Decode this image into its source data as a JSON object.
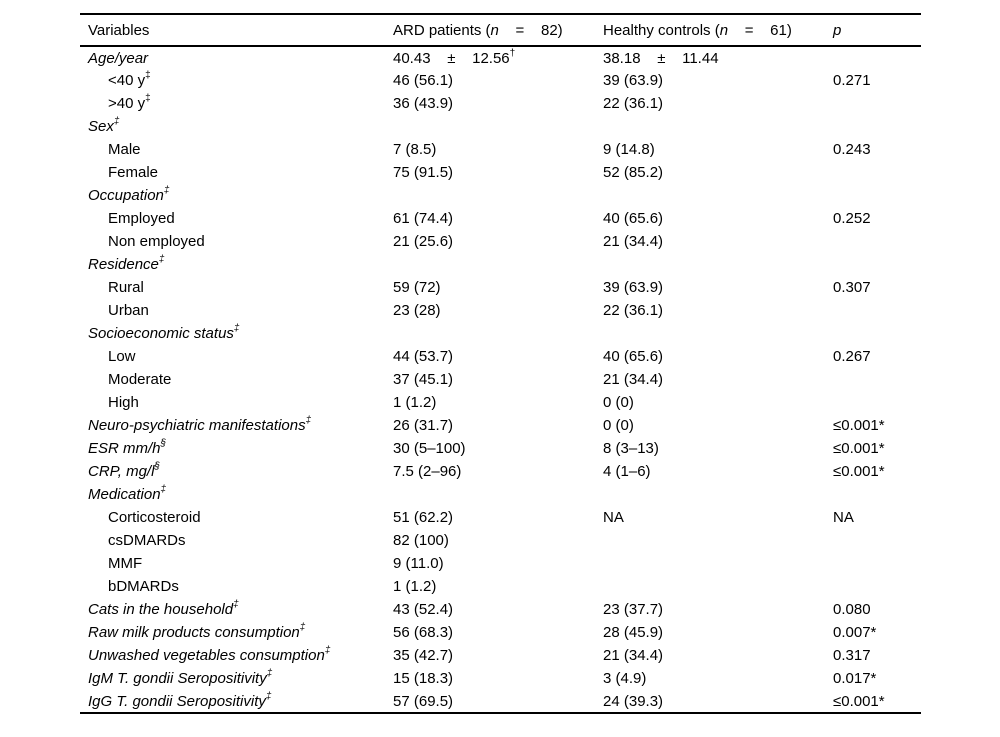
{
  "document": {
    "background_color": "#ffffff",
    "text_color": "#000000",
    "rule_color": "#000000"
  },
  "table": {
    "header": {
      "variables": "Variables",
      "ard": {
        "pre": "ARD patients (",
        "n": "n",
        "post": "    =    82)"
      },
      "controls": {
        "pre": "Healthy controls (",
        "n": "n",
        "post": "    =    61)"
      },
      "p": "p"
    },
    "rows": [
      {
        "label": "Age/year",
        "italic": true,
        "indent": false,
        "sup": "",
        "ard": "40.43    ±    12.56",
        "ard_sup": "†",
        "hc": "38.18    ±    11.44",
        "p": ""
      },
      {
        "label": "<40 y",
        "italic": false,
        "indent": true,
        "sup": "‡",
        "ard": "46 (56.1)",
        "hc": "39 (63.9)",
        "p": "0.271"
      },
      {
        "label": ">40 y",
        "italic": false,
        "indent": true,
        "sup": "‡",
        "ard": "36 (43.9)",
        "hc": "22 (36.1)",
        "p": ""
      },
      {
        "label": "Sex",
        "italic": true,
        "indent": false,
        "sup": "‡",
        "ard": "",
        "hc": "",
        "p": ""
      },
      {
        "label": "Male",
        "italic": false,
        "indent": true,
        "sup": "",
        "ard": "7 (8.5)",
        "hc": "9 (14.8)",
        "p": "0.243"
      },
      {
        "label": "Female",
        "italic": false,
        "indent": true,
        "sup": "",
        "ard": "75 (91.5)",
        "hc": "52 (85.2)",
        "p": ""
      },
      {
        "label": "Occupation",
        "italic": true,
        "indent": false,
        "sup": "‡",
        "ard": "",
        "hc": "",
        "p": ""
      },
      {
        "label": "Employed",
        "italic": false,
        "indent": true,
        "sup": "",
        "ard": "61 (74.4)",
        "hc": "40 (65.6)",
        "p": "0.252"
      },
      {
        "label": "Non employed",
        "italic": false,
        "indent": true,
        "sup": "",
        "ard": "21 (25.6)",
        "hc": "21 (34.4)",
        "p": ""
      },
      {
        "label": "Residence",
        "italic": true,
        "indent": false,
        "sup": "‡",
        "ard": "",
        "hc": "",
        "p": ""
      },
      {
        "label": "Rural",
        "italic": false,
        "indent": true,
        "sup": "",
        "ard": "59 (72)",
        "hc": "39 (63.9)",
        "p": "0.307"
      },
      {
        "label": "Urban",
        "italic": false,
        "indent": true,
        "sup": "",
        "ard": "23 (28)",
        "hc": "22 (36.1)",
        "p": ""
      },
      {
        "label": "Socioeconomic status",
        "italic": true,
        "indent": false,
        "sup": "‡",
        "ard": "",
        "hc": "",
        "p": ""
      },
      {
        "label": "Low",
        "italic": false,
        "indent": true,
        "sup": "",
        "ard": "44 (53.7)",
        "hc": "40 (65.6)",
        "p": "0.267"
      },
      {
        "label": "Moderate",
        "italic": false,
        "indent": true,
        "sup": "",
        "ard": "37 (45.1)",
        "hc": "21 (34.4)",
        "p": ""
      },
      {
        "label": "High",
        "italic": false,
        "indent": true,
        "sup": "",
        "ard": "1 (1.2)",
        "hc": "0 (0)",
        "p": ""
      },
      {
        "label": "Neuro-psychiatric manifestations",
        "italic": true,
        "indent": false,
        "sup": "‡",
        "ard": "26 (31.7)",
        "hc": "0 (0)",
        "p": "≤0.001*"
      },
      {
        "label": "ESR mm/h",
        "italic": true,
        "indent": false,
        "sup": "§",
        "ard": "30 (5–100)",
        "hc": "8 (3–13)",
        "p": "≤0.001*"
      },
      {
        "label": "CRP, mg/l",
        "italic": true,
        "indent": false,
        "sup": "§",
        "ard": "7.5 (2–96)",
        "hc": "4 (1–6)",
        "p": "≤0.001*"
      },
      {
        "label": "Medication",
        "italic": true,
        "indent": false,
        "sup": "‡",
        "ard": "",
        "hc": "",
        "p": ""
      },
      {
        "label": "Corticosteroid",
        "italic": false,
        "indent": true,
        "sup": "",
        "ard": "51 (62.2)",
        "hc": "NA",
        "p": "NA"
      },
      {
        "label": "csDMARDs",
        "italic": false,
        "indent": true,
        "sup": "",
        "ard": "82 (100)",
        "hc": "",
        "p": ""
      },
      {
        "label": "MMF",
        "italic": false,
        "indent": true,
        "sup": "",
        "ard": "9 (11.0)",
        "hc": "",
        "p": ""
      },
      {
        "label": "bDMARDs",
        "italic": false,
        "indent": true,
        "sup": "",
        "ard": "1 (1.2)",
        "hc": "",
        "p": ""
      },
      {
        "label": "Cats in the household",
        "italic": true,
        "indent": false,
        "sup": "‡",
        "ard": "43 (52.4)",
        "hc": "23 (37.7)",
        "p": "0.080"
      },
      {
        "label": "Raw milk products consumption",
        "italic": true,
        "indent": false,
        "sup": "‡",
        "ard": "56 (68.3)",
        "hc": "28 (45.9)",
        "p": "0.007*"
      },
      {
        "label": "Unwashed vegetables consumption",
        "italic": true,
        "indent": false,
        "sup": "‡",
        "ard": "35 (42.7)",
        "hc": "21 (34.4)",
        "p": "0.317"
      },
      {
        "label": "IgM T. gondii Seropositivity",
        "italic": true,
        "indent": false,
        "sup": "‡",
        "ard": "15 (18.3)",
        "hc": "3 (4.9)",
        "p": "0.017*"
      },
      {
        "label": "IgG T. gondii Seropositivity",
        "italic": true,
        "indent": false,
        "sup": "‡",
        "ard": "57 (69.5)",
        "hc": "24 (39.3)",
        "p": "≤0.001*"
      }
    ]
  }
}
